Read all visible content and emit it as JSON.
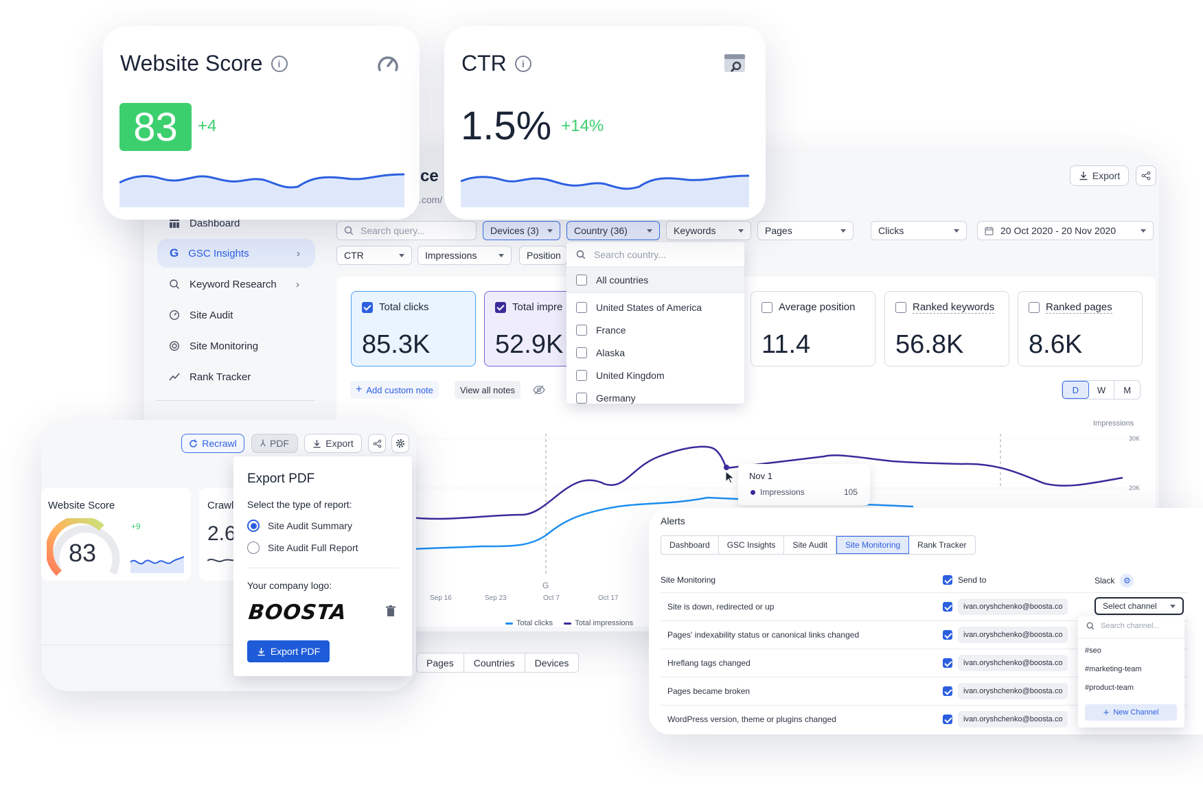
{
  "score_card": {
    "title": "Website Score",
    "score": "83",
    "delta": "+4"
  },
  "ctr_card": {
    "title": "CTR",
    "value": "1.5%",
    "delta": "+14%"
  },
  "main": {
    "title_fragment": "ce",
    "url_fragment": ".com/",
    "export_label": "Export",
    "search_placeholder": "Search query...",
    "filters": {
      "devices": "Devices (3)",
      "country": "Country (36)",
      "keywords": "Keywords",
      "pages": "Pages",
      "clicks": "Clicks",
      "date": "20 Oct 2020 - 20 Nov 2020",
      "ctr": "CTR",
      "impressions": "Impressions",
      "position": "Position"
    },
    "country_dropdown": {
      "search_placeholder": "Search country...",
      "all": "All countries",
      "items": [
        "United States of America",
        "France",
        "Alaska",
        "United Kingdom",
        "Germany"
      ]
    },
    "metrics": [
      {
        "label": "Total clicks",
        "value": "85.3K"
      },
      {
        "label": "Total impre",
        "value": "52.9K"
      },
      {
        "label": "Average position",
        "value": "11.4"
      },
      {
        "label": "Ranked keywords",
        "value": "56.8K"
      },
      {
        "label": "Ranked pages",
        "value": "8.6K"
      }
    ],
    "add_note": "Add custom note",
    "view_notes": "View all notes",
    "periods": [
      "D",
      "W",
      "M"
    ],
    "chart": {
      "y_label": "Impressions",
      "y_ticks": [
        "30K",
        "20K"
      ],
      "x_ticks": [
        "Sep 16",
        "Sep 23",
        "Oct 7",
        "Oct 17"
      ],
      "marker": "G",
      "legend": [
        "Total clicks",
        "Total impressions"
      ],
      "tooltip": {
        "date": "Nov 1",
        "series": "Impressions",
        "value": "105"
      }
    },
    "bottom_tabs": [
      "Pages",
      "Countries",
      "Devices"
    ]
  },
  "sidebar": {
    "items": [
      {
        "label": "Dashboard"
      },
      {
        "label": "GSC Insights"
      },
      {
        "label": "Keyword Research"
      },
      {
        "label": "Site Audit"
      },
      {
        "label": "Site Monitoring"
      },
      {
        "label": "Rank Tracker"
      }
    ]
  },
  "audit_card": {
    "recrawl": "Recrawl",
    "pdf": "PDF",
    "export": "Export",
    "score_label": "Website Score",
    "score": "83",
    "delta": "+9",
    "crawl_label": "Crawl",
    "crawl_value": "2.6"
  },
  "export_pdf": {
    "title": "Export PDF",
    "subtitle": "Select the type of report:",
    "options": [
      "Site Audit Summary",
      "Site Audit Full Report"
    ],
    "logo_label": "Your company logo:",
    "logo_text": "BOOSTA",
    "button": "Export PDF"
  },
  "alerts": {
    "title": "Alerts",
    "tabs": [
      "Dashboard",
      "GSC Insights",
      "Site Audit",
      "Site Monitoring",
      "Rank Tracker"
    ],
    "col_monitoring": "Site Monitoring",
    "col_send": "Send to",
    "col_slack": "Slack",
    "rows": [
      {
        "label": "Site is down, redirected or up",
        "email": "ivan.oryshchenko@boosta.co"
      },
      {
        "label": "Pages' indexability status or canonical links changed",
        "email": "ivan.oryshchenko@boosta.co"
      },
      {
        "label": "Hreflang tags changed",
        "email": "ivan.oryshchenko@boosta.co"
      },
      {
        "label": "Pages became broken",
        "email": "ivan.oryshchenko@boosta.co"
      },
      {
        "label": "WordPress version, theme or plugins changed",
        "email": "ivan.oryshchenko@boosta.co"
      }
    ],
    "channel_select": "Select channel",
    "channel_search": "Search channel...",
    "channels": [
      "#seo",
      "#marketing-team",
      "#product-team"
    ],
    "new_channel": "New Channel"
  },
  "colors": {
    "accent": "#2c5fe0",
    "green": "#3ccf6e",
    "purple": "#3a2a9a",
    "chart_blue": "#1d8ff0"
  }
}
